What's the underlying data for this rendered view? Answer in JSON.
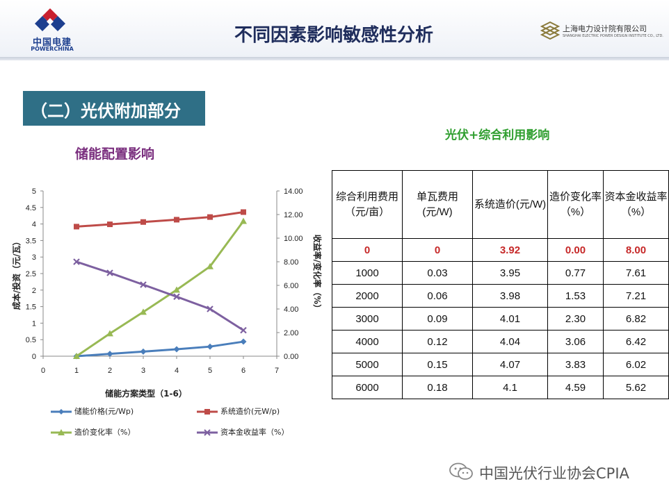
{
  "header": {
    "left_logo_cn": "中国电建",
    "left_logo_en": "POWERCHINA",
    "title": "不同因素影响敏感性分析",
    "right_logo_cn": "上海电力设计院有限公司",
    "right_logo_en": "SHANGHAI ELECTRIC POWER DESIGN INSTITUTE CO., LTD."
  },
  "section": {
    "title": "（二）光伏附加部分"
  },
  "chart_data": {
    "type": "line",
    "title": "储能配置影响",
    "xlabel": "储能方案类型（1-6）",
    "ylabel": "成本/投资（元/瓦）",
    "y2label": "收益率/变化率（%）",
    "xlim": [
      0,
      7
    ],
    "ylim": [
      0,
      5
    ],
    "y2lim": [
      0,
      14
    ],
    "x_ticks": [
      "0",
      "1",
      "2",
      "3",
      "4",
      "5",
      "6",
      "7"
    ],
    "y_ticks": [
      "0",
      "0.5",
      "1",
      "1.5",
      "2",
      "2.5",
      "3",
      "3.5",
      "4",
      "4.5",
      "5"
    ],
    "y2_ticks": [
      "0.00",
      "2.00",
      "4.00",
      "6.00",
      "8.00",
      "10.00",
      "12.00",
      "14.00"
    ],
    "x": [
      1,
      2,
      3,
      4,
      5,
      6
    ],
    "series": [
      {
        "name": "储能价格(元/Wp)",
        "axis": "left",
        "color": "#4a7ebb",
        "marker": "diamond",
        "values": [
          0,
          0.07,
          0.14,
          0.21,
          0.29,
          0.44
        ]
      },
      {
        "name": "系统造价(元W/p)",
        "axis": "left",
        "color": "#be4b48",
        "marker": "square",
        "values": [
          3.92,
          3.99,
          4.06,
          4.13,
          4.21,
          4.36
        ]
      },
      {
        "name": "造价变化率（%）",
        "axis": "right",
        "color": "#98b954",
        "marker": "triangle",
        "values": [
          0,
          1.92,
          3.74,
          5.62,
          7.6,
          11.44
        ]
      },
      {
        "name": "资本金收益率（%）",
        "axis": "right",
        "color": "#7d60a0",
        "marker": "x",
        "values": [
          8.0,
          7.06,
          6.06,
          5.04,
          4.0,
          2.2
        ]
      }
    ]
  },
  "table": {
    "title": "光伏+综合利用影响",
    "headers": [
      "综合利用费用（元/亩）",
      "单瓦费用(元/W)",
      "系统造价(元/W)",
      "造价变化率（%）",
      "资本金收益率（%）"
    ],
    "highlight_row": [
      "0",
      "0",
      "3.92",
      "0.00",
      "8.00"
    ],
    "rows": [
      [
        "1000",
        "0.03",
        "3.95",
        "0.77",
        "7.61"
      ],
      [
        "2000",
        "0.06",
        "3.98",
        "1.53",
        "7.21"
      ],
      [
        "3000",
        "0.09",
        "4.01",
        "2.30",
        "6.82"
      ],
      [
        "4000",
        "0.12",
        "4.04",
        "3.06",
        "6.42"
      ],
      [
        "5000",
        "0.15",
        "4.07",
        "3.83",
        "6.02"
      ],
      [
        "6000",
        "0.18",
        "4.1",
        "4.59",
        "5.62"
      ]
    ]
  },
  "watermark": {
    "text": "中国光伏行业协会CPIA"
  }
}
